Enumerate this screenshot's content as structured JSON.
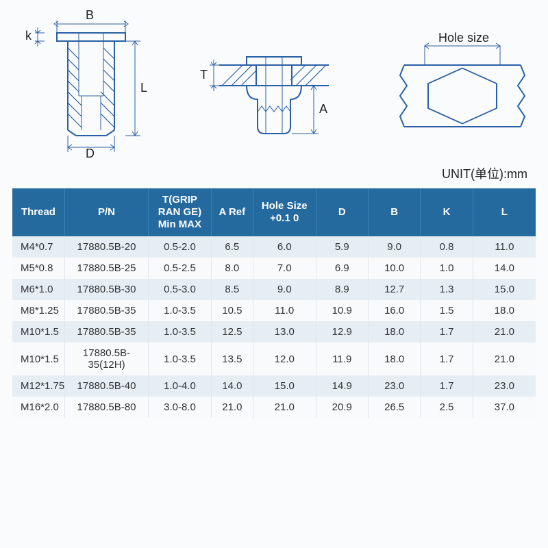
{
  "unit_label": "UNIT(单位):mm",
  "diagrams": {
    "dim_B": "B",
    "dim_k": "k",
    "dim_L": "L",
    "dim_D": "D",
    "dim_T": "T",
    "dim_A": "A",
    "hole_label": "Hole size",
    "stroke_color": "#2a5fa5",
    "text_color": "#222222",
    "line_width": 2,
    "thin_width": 1,
    "label_fontsize": 18
  },
  "table": {
    "header_bg": "#246a9e",
    "header_fg": "#ffffff",
    "row_odd_bg": "#e6eef4",
    "row_even_bg": "#f8fafc",
    "columns": [
      {
        "label": "Thread",
        "width": "10%"
      },
      {
        "label": "P/N",
        "width": "16%"
      },
      {
        "label": "T(GRIP RAN GE) Min MAX",
        "width": "12%"
      },
      {
        "label": "A Ref",
        "width": "8%"
      },
      {
        "label": "Hole Size +0.1 0",
        "width": "12%"
      },
      {
        "label": "D",
        "width": "10%"
      },
      {
        "label": "B",
        "width": "10%"
      },
      {
        "label": "K",
        "width": "10%"
      },
      {
        "label": "L",
        "width": "12%"
      }
    ],
    "rows": [
      [
        "M4*0.7",
        "17880.5B-20",
        "0.5-2.0",
        "6.5",
        "6.0",
        "5.9",
        "9.0",
        "0.8",
        "11.0"
      ],
      [
        "M5*0.8",
        "17880.5B-25",
        "0.5-2.5",
        "8.0",
        "7.0",
        "6.9",
        "10.0",
        "1.0",
        "14.0"
      ],
      [
        "M6*1.0",
        "17880.5B-30",
        "0.5-3.0",
        "8.5",
        "9.0",
        "8.9",
        "12.7",
        "1.3",
        "15.0"
      ],
      [
        "M8*1.25",
        "17880.5B-35",
        "1.0-3.5",
        "10.5",
        "11.0",
        "10.9",
        "16.0",
        "1.5",
        "18.0"
      ],
      [
        "M10*1.5",
        "17880.5B-35",
        "1.0-3.5",
        "12.5",
        "13.0",
        "12.9",
        "18.0",
        "1.7",
        "21.0"
      ],
      [
        "M10*1.5",
        "17880.5B-35(12H)",
        "1.0-3.5",
        "13.5",
        "12.0",
        "11.9",
        "18.0",
        "1.7",
        "21.0"
      ],
      [
        "M12*1.75",
        "17880.5B-40",
        "1.0-4.0",
        "14.0",
        "15.0",
        "14.9",
        "23.0",
        "1.7",
        "23.0"
      ],
      [
        "M16*2.0",
        "17880.5B-80",
        "3.0-8.0",
        "21.0",
        "21.0",
        "20.9",
        "26.5",
        "2.5",
        "37.0"
      ]
    ]
  }
}
